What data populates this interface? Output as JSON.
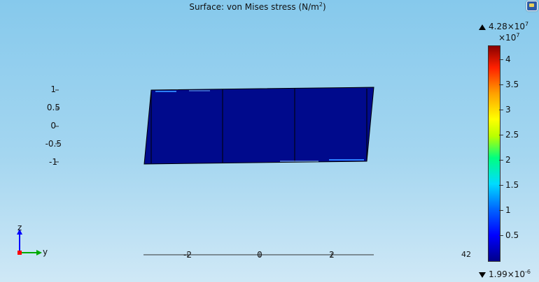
{
  "plot": {
    "title_prefix": "Surface: von Mises stress (N/m",
    "title_exp": "2",
    "title_suffix": ")",
    "z_ticks": [
      "1",
      "0.5",
      "0",
      "-0.5",
      "-1"
    ],
    "y_ticks": [
      "-2",
      "0",
      "2"
    ],
    "overlap_label": "42"
  },
  "colorbar": {
    "max_mantissa": "4.28×10",
    "max_exp": "7",
    "mult_base": "×10",
    "mult_exp": "7",
    "min_mantissa": "1.99×10",
    "min_exp": "-6",
    "ticks": [
      "4",
      "3.5",
      "3",
      "2.5",
      "2",
      "1.5",
      "1",
      "0.5"
    ],
    "tick_values": [
      4,
      3.5,
      3,
      2.5,
      2,
      1.5,
      1,
      0.5
    ],
    "range": [
      0,
      4.28
    ]
  },
  "axes_widget": {
    "vertical_label": "z",
    "horizontal_label": "y"
  },
  "icons": {
    "corner_button": "view-menu-icon",
    "max_marker": "triangle-up-icon",
    "min_marker": "triangle-down-icon"
  },
  "colors": {
    "beam_fill": "#000a8c",
    "background_top": "#86c9ec",
    "background_bottom": "#cfe8f6",
    "axis_z": "#0000ff",
    "axis_y": "#00aa00",
    "origin": "#ff0000"
  }
}
